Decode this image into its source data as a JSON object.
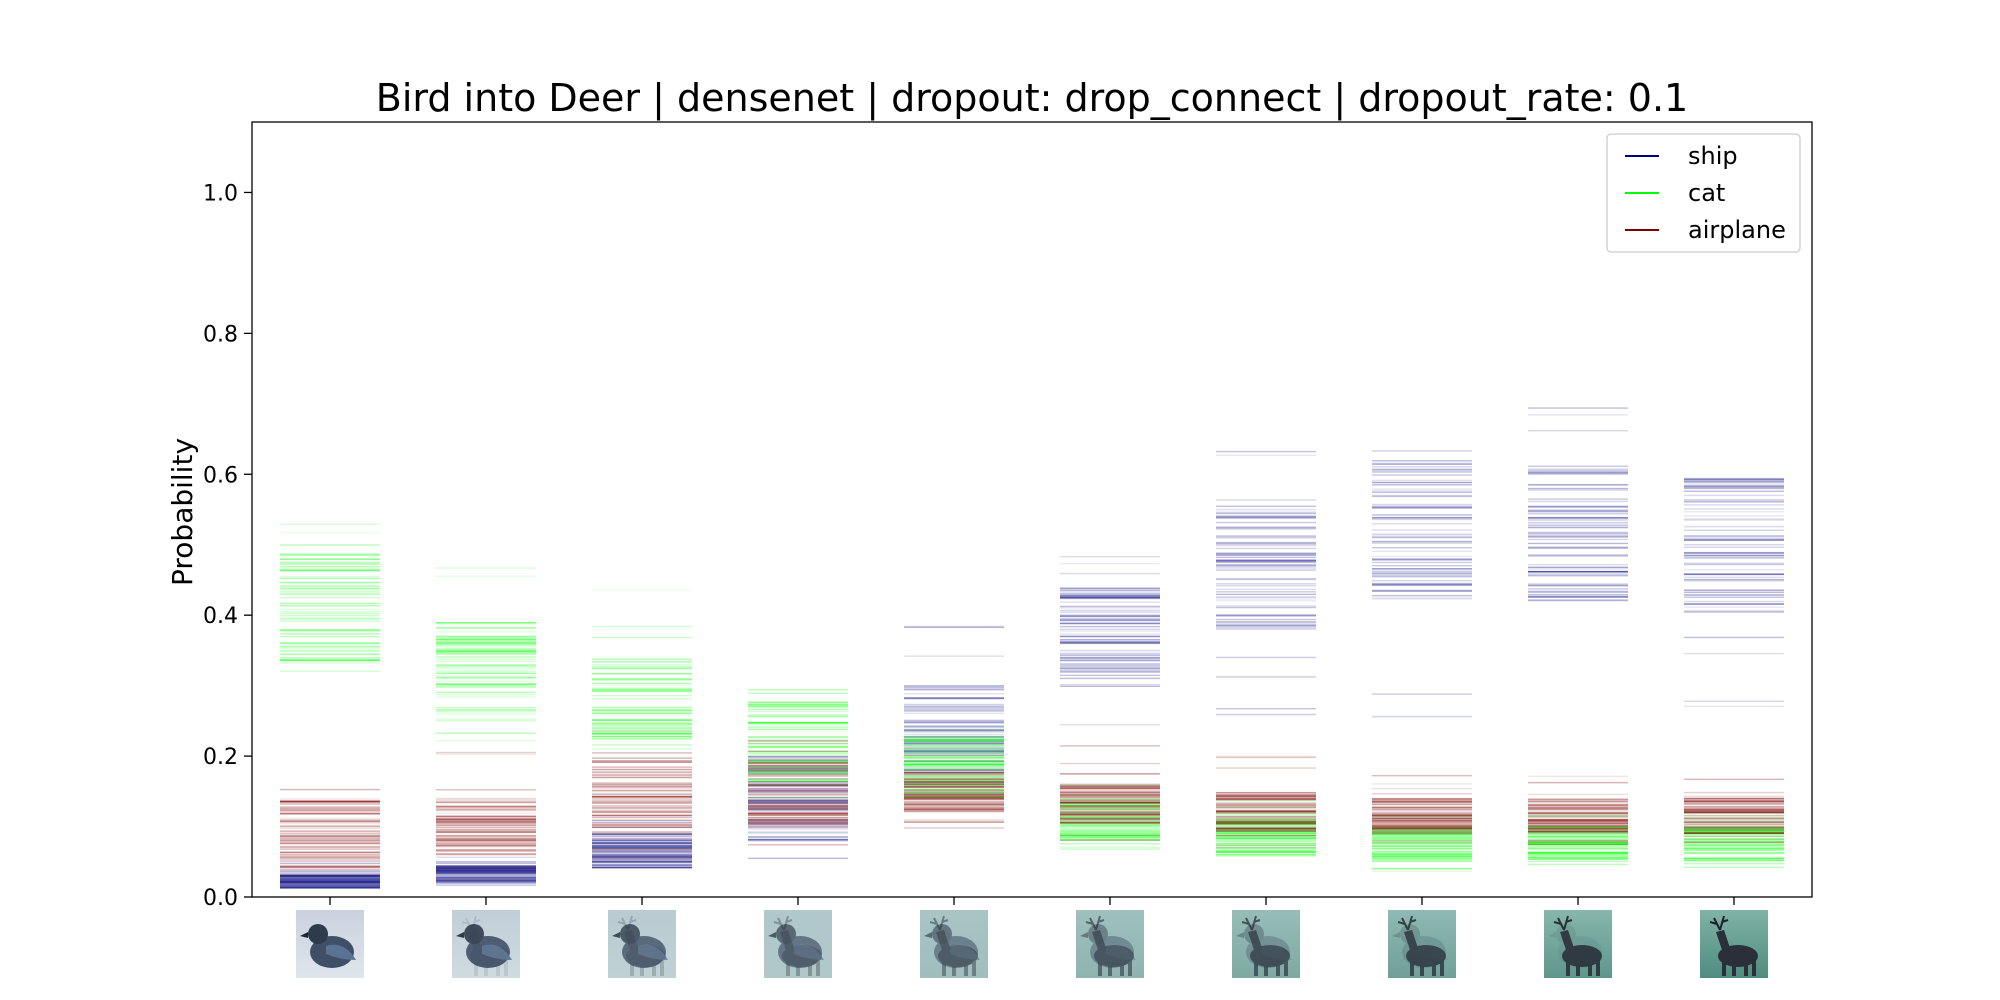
{
  "chart_data": {
    "type": "scatter",
    "title": "Bird into Deer | densenet | dropout: drop_connect | dropout_rate: 0.1",
    "xlabel": "",
    "ylabel": "Probability",
    "ylim": [
      0.0,
      1.1
    ],
    "yticks": [
      0.0,
      0.2,
      0.4,
      0.6,
      0.8,
      1.0
    ],
    "ytick_labels": [
      "0.0",
      "0.2",
      "0.4",
      "0.6",
      "0.8",
      "1.0"
    ],
    "x_positions": [
      1,
      2,
      3,
      4,
      5,
      6,
      7,
      8,
      9,
      10
    ],
    "x_tick_images": [
      "bird",
      "bird",
      "bird",
      "bird",
      "bird-deer-blend",
      "deer",
      "deer",
      "deer",
      "deer",
      "deer"
    ],
    "image_morph": [
      0.0,
      0.11,
      0.22,
      0.33,
      0.44,
      0.56,
      0.67,
      0.78,
      0.89,
      1.0
    ],
    "grid": false,
    "legend_position": "top-right",
    "series": [
      {
        "name": "ship",
        "color": "#00007f",
        "ranges": [
          [
            0.01,
            0.05
          ],
          [
            0.015,
            0.06
          ],
          [
            0.02,
            0.12
          ],
          [
            0.05,
            0.25
          ],
          [
            0.12,
            0.39
          ],
          [
            0.14,
            0.52
          ],
          [
            0.22,
            0.66
          ],
          [
            0.25,
            0.7
          ],
          [
            0.26,
            0.71
          ],
          [
            0.24,
            0.69
          ]
        ],
        "dense": [
          [
            0.012,
            0.032
          ],
          [
            0.02,
            0.045
          ],
          [
            0.04,
            0.09
          ],
          [
            0.08,
            0.2
          ],
          [
            0.16,
            0.3
          ],
          [
            0.3,
            0.44
          ],
          [
            0.38,
            0.56
          ],
          [
            0.42,
            0.62
          ],
          [
            0.42,
            0.62
          ],
          [
            0.4,
            0.6
          ]
        ]
      },
      {
        "name": "cat",
        "color": "#00ff00",
        "ranges": [
          [
            0.27,
            0.55
          ],
          [
            0.2,
            0.47
          ],
          [
            0.16,
            0.44
          ],
          [
            0.13,
            0.3
          ],
          [
            0.12,
            0.26
          ],
          [
            0.06,
            0.16
          ],
          [
            0.05,
            0.14
          ],
          [
            0.03,
            0.12
          ],
          [
            0.04,
            0.12
          ],
          [
            0.04,
            0.12
          ]
        ],
        "dense": [
          [
            0.33,
            0.49
          ],
          [
            0.25,
            0.39
          ],
          [
            0.21,
            0.34
          ],
          [
            0.16,
            0.28
          ],
          [
            0.14,
            0.23
          ],
          [
            0.08,
            0.14
          ],
          [
            0.06,
            0.12
          ],
          [
            0.05,
            0.1
          ],
          [
            0.05,
            0.1
          ],
          [
            0.05,
            0.1
          ]
        ]
      },
      {
        "name": "airplane",
        "color": "#7f0000",
        "ranges": [
          [
            0.02,
            0.17
          ],
          [
            0.04,
            0.21
          ],
          [
            0.05,
            0.24
          ],
          [
            0.07,
            0.23
          ],
          [
            0.09,
            0.22
          ],
          [
            0.08,
            0.22
          ],
          [
            0.07,
            0.2
          ],
          [
            0.07,
            0.18
          ],
          [
            0.07,
            0.18
          ],
          [
            0.07,
            0.18
          ]
        ],
        "dense": [
          [
            0.04,
            0.14
          ],
          [
            0.06,
            0.14
          ],
          [
            0.08,
            0.2
          ],
          [
            0.1,
            0.2
          ],
          [
            0.12,
            0.18
          ],
          [
            0.1,
            0.16
          ],
          [
            0.09,
            0.15
          ],
          [
            0.09,
            0.14
          ],
          [
            0.09,
            0.14
          ],
          [
            0.09,
            0.14
          ]
        ]
      }
    ]
  }
}
